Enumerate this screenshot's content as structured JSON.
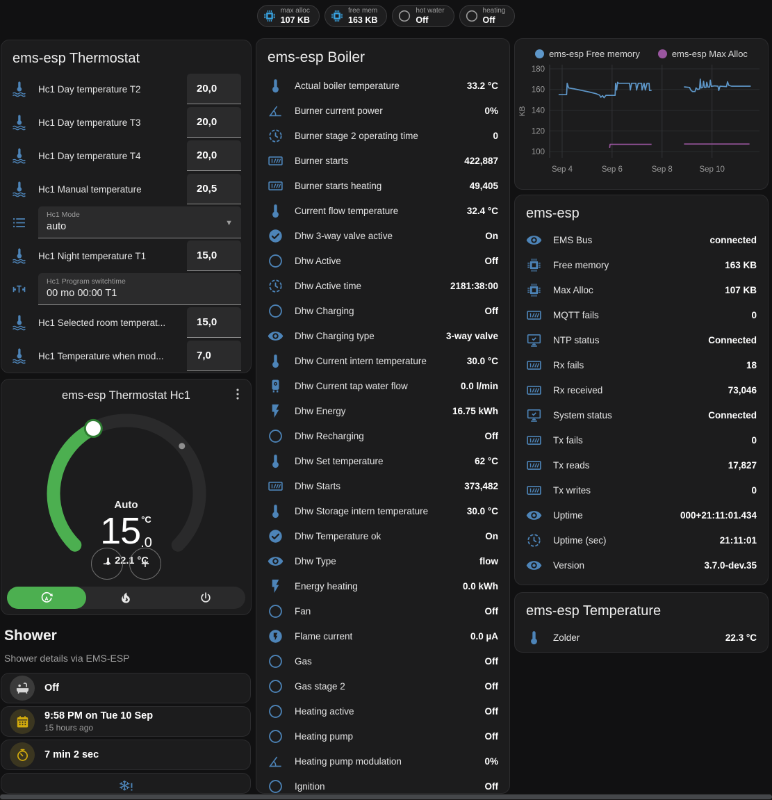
{
  "colors": {
    "icon_blue": "#4d84b8",
    "badge_icon_blue": "#38a3e0",
    "accent_green": "#4caf50",
    "warn_yellow": "#d4ac0d",
    "chart_blue": "#5e97c9",
    "chart_purple": "#9a56a0"
  },
  "badges": [
    {
      "icon": "memory",
      "icon_color": "#38a3e0",
      "label": "max alloc",
      "value": "107 KB"
    },
    {
      "icon": "memory",
      "icon_color": "#38a3e0",
      "label": "free mem",
      "value": "163 KB"
    },
    {
      "icon": "circle",
      "icon_color": "#9b9b9b",
      "label": "hot water",
      "value": "Off"
    },
    {
      "icon": "circle",
      "icon_color": "#9b9b9b",
      "label": "heating",
      "value": "Off"
    }
  ],
  "thermostat_card": {
    "title": "ems-esp Thermostat",
    "rows": [
      {
        "type": "number",
        "icon": "thermometer-water",
        "label": "Hc1 Day temperature T2",
        "value": "20,0"
      },
      {
        "type": "number",
        "icon": "thermometer-water",
        "label": "Hc1 Day temperature T3",
        "value": "20,0"
      },
      {
        "type": "number",
        "icon": "thermometer-water",
        "label": "Hc1 Day temperature T4",
        "value": "20,0"
      },
      {
        "type": "number",
        "icon": "thermometer-water",
        "label": "Hc1 Manual temperature",
        "value": "20,5"
      },
      {
        "type": "select",
        "icon": "list",
        "label": "Hc1 Mode",
        "value": "auto"
      },
      {
        "type": "number",
        "icon": "thermometer-water",
        "label": "Hc1 Night temperature T1",
        "value": "15,0"
      },
      {
        "type": "text",
        "icon": "valve",
        "label": "Hc1 Program switchtime",
        "value": "00 mo 00:00 T1"
      },
      {
        "type": "number",
        "icon": "thermometer-water",
        "label": "Hc1 Selected room temperat...",
        "value": "15,0"
      },
      {
        "type": "number",
        "icon": "thermometer-water",
        "label": "Hc1 Temperature when mod...",
        "value": "7,0"
      }
    ]
  },
  "dial_card": {
    "title": "ems-esp Thermostat Hc1",
    "mode": "Auto",
    "target_int": "15",
    "target_frac": ".0",
    "unit": "°C",
    "current": "22.1 °C",
    "decrease": "−",
    "increase": "+",
    "modes": [
      {
        "icon": "auto-mode",
        "active": true
      },
      {
        "icon": "fire",
        "active": false
      },
      {
        "icon": "power",
        "active": false
      }
    ]
  },
  "shower": {
    "title": "Shower",
    "subtitle": "Shower details via EMS-ESP",
    "items": [
      {
        "icon": "bathtub",
        "icon_color": "#d8d8d8",
        "circle_bg": "#3b3b3b",
        "value": "Off",
        "secondary": ""
      },
      {
        "icon": "calendar",
        "icon_color": "#d4ac0d",
        "circle_bg": "#3b3620",
        "value": "9:58 PM on Tue 10 Sep",
        "secondary": "15 hours ago"
      },
      {
        "icon": "timer",
        "icon_color": "#d4ac0d",
        "circle_bg": "#3b3620",
        "value": "7 min 2 sec",
        "secondary": ""
      },
      {
        "icon": "snowflake-alert",
        "icon_color": "#4d84b8",
        "circle_bg": "",
        "value": "",
        "secondary": "",
        "centered": true
      }
    ]
  },
  "boiler_card": {
    "title": "ems-esp Boiler",
    "rows": [
      {
        "icon": "thermometer",
        "label": "Actual boiler temperature",
        "value": "33.2 °C"
      },
      {
        "icon": "angle",
        "label": "Burner current power",
        "value": "0%"
      },
      {
        "icon": "clock",
        "label": "Burner stage 2 operating time",
        "value": "0"
      },
      {
        "icon": "counter",
        "label": "Burner starts",
        "value": "422,887"
      },
      {
        "icon": "counter",
        "label": "Burner starts heating",
        "value": "49,405"
      },
      {
        "icon": "thermometer",
        "label": "Current flow temperature",
        "value": "32.4 °C"
      },
      {
        "icon": "check-circle",
        "label": "Dhw 3-way valve active",
        "value": "On"
      },
      {
        "icon": "circle",
        "label": "Dhw Active",
        "value": "Off"
      },
      {
        "icon": "clock",
        "label": "Dhw Active time",
        "value": "2181:38:00"
      },
      {
        "icon": "circle",
        "label": "Dhw Charging",
        "value": "Off"
      },
      {
        "icon": "eye",
        "label": "Dhw Charging type",
        "value": "3-way valve"
      },
      {
        "icon": "thermometer",
        "label": "Dhw Current intern temperature",
        "value": "30.0 °C"
      },
      {
        "icon": "water-boiler",
        "label": "Dhw Current tap water flow",
        "value": "0.0 l/min"
      },
      {
        "icon": "flash",
        "label": "Dhw Energy",
        "value": "16.75 kWh"
      },
      {
        "icon": "circle",
        "label": "Dhw Recharging",
        "value": "Off"
      },
      {
        "icon": "thermometer",
        "label": "Dhw Set temperature",
        "value": "62 °C"
      },
      {
        "icon": "counter",
        "label": "Dhw Starts",
        "value": "373,482"
      },
      {
        "icon": "thermometer",
        "label": "Dhw Storage intern temperature",
        "value": "30.0 °C"
      },
      {
        "icon": "check-circle",
        "label": "Dhw Temperature ok",
        "value": "On"
      },
      {
        "icon": "eye",
        "label": "Dhw Type",
        "value": "flow"
      },
      {
        "icon": "flash",
        "label": "Energy heating",
        "value": "0.0 kWh"
      },
      {
        "icon": "circle",
        "label": "Fan",
        "value": "Off"
      },
      {
        "icon": "flash-circle",
        "label": "Flame current",
        "value": "0.0 µA"
      },
      {
        "icon": "circle",
        "label": "Gas",
        "value": "Off"
      },
      {
        "icon": "circle",
        "label": "Gas stage 2",
        "value": "Off"
      },
      {
        "icon": "circle",
        "label": "Heating active",
        "value": "Off"
      },
      {
        "icon": "circle",
        "label": "Heating pump",
        "value": "Off"
      },
      {
        "icon": "angle",
        "label": "Heating pump modulation",
        "value": "0%"
      },
      {
        "icon": "circle",
        "label": "Ignition",
        "value": "Off"
      }
    ]
  },
  "chart_data": {
    "type": "line",
    "ylabel": "KB",
    "yticks": [
      100,
      120,
      140,
      160,
      180
    ],
    "yrange": [
      94,
      184
    ],
    "xrange": [
      3.5,
      11.9
    ],
    "xticks": [
      {
        "label": "Sep 4",
        "day": 4
      },
      {
        "label": "Sep 6",
        "day": 6
      },
      {
        "label": "Sep 8",
        "day": 8
      },
      {
        "label": "Sep 10",
        "day": 10
      }
    ],
    "legend": [
      {
        "name": "ems-esp Free memory",
        "color": "#5e97c9"
      },
      {
        "name": "ems-esp Max Alloc",
        "color": "#9a56a0"
      }
    ],
    "series": [
      {
        "name": "ems-esp Free memory",
        "color": "#5e97c9",
        "segments": [
          [
            [
              3.86,
              155
            ],
            [
              4.18,
              155
            ],
            [
              4.2,
              166
            ],
            [
              4.26,
              161.5
            ],
            [
              4.5,
              160.5
            ],
            [
              4.8,
              159
            ],
            [
              5.1,
              157.5
            ],
            [
              5.35,
              156
            ],
            [
              5.5,
              154.5
            ],
            [
              5.55,
              152.5
            ],
            [
              5.62,
              154
            ],
            [
              5.68,
              152
            ],
            [
              5.75,
              154.3
            ],
            [
              6.12,
              154.3
            ],
            [
              6.14,
              166
            ],
            [
              6.18,
              159.5
            ],
            [
              6.22,
              167
            ],
            [
              6.26,
              166
            ],
            [
              6.7,
              166
            ],
            [
              6.73,
              159.5
            ],
            [
              6.78,
              166
            ],
            [
              6.95,
              166
            ],
            [
              6.98,
              159.5
            ],
            [
              7.05,
              166
            ],
            [
              7.18,
              166
            ],
            [
              7.2,
              159.5
            ],
            [
              7.28,
              166
            ],
            [
              7.33,
              159.5
            ],
            [
              7.4,
              166
            ],
            [
              7.48,
              166
            ],
            [
              7.5,
              159
            ],
            [
              7.58,
              159
            ]
          ],
          [
            [
              8.88,
              162.5
            ],
            [
              9.1,
              162
            ],
            [
              9.15,
              159.5
            ],
            [
              9.22,
              158
            ],
            [
              9.32,
              158
            ],
            [
              9.36,
              161.5
            ],
            [
              9.42,
              160
            ],
            [
              9.5,
              160.5
            ],
            [
              9.53,
              170
            ],
            [
              9.56,
              161.5
            ],
            [
              9.63,
              162
            ],
            [
              9.66,
              168
            ],
            [
              9.7,
              162
            ],
            [
              9.76,
              162
            ],
            [
              9.79,
              167
            ],
            [
              9.84,
              162.3
            ],
            [
              9.9,
              162.3
            ],
            [
              9.93,
              169
            ],
            [
              9.97,
              163
            ],
            [
              10.1,
              163.5
            ],
            [
              10.24,
              163.2
            ],
            [
              10.27,
              159
            ],
            [
              10.32,
              163.2
            ],
            [
              10.58,
              162.8
            ],
            [
              10.62,
              167.5
            ],
            [
              10.67,
              164
            ],
            [
              10.78,
              163.2
            ],
            [
              11.55,
              163.2
            ]
          ]
        ]
      },
      {
        "name": "ems-esp Max Alloc",
        "color": "#9a56a0",
        "segments": [
          [
            [
              5.9,
              103.5
            ],
            [
              5.92,
              107
            ],
            [
              7.58,
              107
            ]
          ],
          [
            [
              8.88,
              107.3
            ],
            [
              11.5,
              107.3
            ]
          ]
        ]
      }
    ]
  },
  "ems_card": {
    "title": "ems-esp",
    "rows": [
      {
        "icon": "eye",
        "label": "EMS Bus",
        "value": "connected"
      },
      {
        "icon": "memory",
        "label": "Free memory",
        "value": "163 KB"
      },
      {
        "icon": "memory",
        "label": "Max Alloc",
        "value": "107 KB"
      },
      {
        "icon": "counter",
        "label": "MQTT fails",
        "value": "0"
      },
      {
        "icon": "monitor-check",
        "label": "NTP status",
        "value": "Connected"
      },
      {
        "icon": "counter",
        "label": "Rx fails",
        "value": "18"
      },
      {
        "icon": "counter",
        "label": "Rx received",
        "value": "73,046"
      },
      {
        "icon": "monitor-check",
        "label": "System status",
        "value": "Connected"
      },
      {
        "icon": "counter",
        "label": "Tx fails",
        "value": "0"
      },
      {
        "icon": "counter",
        "label": "Tx reads",
        "value": "17,827"
      },
      {
        "icon": "counter",
        "label": "Tx writes",
        "value": "0"
      },
      {
        "icon": "eye",
        "label": "Uptime",
        "value": "000+21:11:01.434"
      },
      {
        "icon": "clock",
        "label": "Uptime (sec)",
        "value": "21:11:01"
      },
      {
        "icon": "eye",
        "label": "Version",
        "value": "3.7.0-dev.35"
      }
    ]
  },
  "temp_card": {
    "title": "ems-esp Temperature",
    "rows": [
      {
        "icon": "thermometer",
        "label": "Zolder",
        "value": "22.3 °C"
      }
    ]
  }
}
